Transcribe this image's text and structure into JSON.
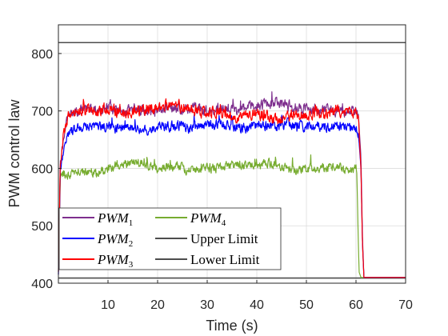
{
  "chart_data": {
    "type": "line",
    "title": "",
    "xlabel": "Time (s)",
    "ylabel": "PWM control law",
    "xlim": [
      0,
      70
    ],
    "ylim": [
      400,
      850
    ],
    "xticks": [
      10,
      20,
      30,
      40,
      50,
      60,
      70
    ],
    "yticks": [
      400,
      500,
      600,
      700,
      800
    ],
    "grid": true,
    "legend_position": "bottom-left",
    "series": [
      {
        "name": "PWM",
        "sub": "1",
        "color": "#7E2F8E",
        "x": [
          0,
          0.4,
          1,
          2,
          4,
          6,
          8,
          10,
          12,
          14,
          16,
          18,
          20,
          22,
          24,
          26,
          28,
          30,
          32,
          34,
          36,
          38,
          40,
          42,
          44,
          46,
          48,
          50,
          52,
          54,
          56,
          58,
          60,
          60.5,
          61,
          61.3,
          61.6,
          70
        ],
        "mean": [
          415,
          605,
          650,
          690,
          700,
          705,
          700,
          705,
          700,
          700,
          705,
          700,
          700,
          705,
          705,
          700,
          705,
          700,
          705,
          705,
          700,
          705,
          710,
          710,
          715,
          710,
          705,
          705,
          700,
          705,
          700,
          700,
          700,
          690,
          620,
          480,
          410,
          410
        ],
        "amp": 14,
        "seed": 11
      },
      {
        "name": "PWM",
        "sub": "2",
        "color": "#0000FF",
        "x": [
          0,
          0.4,
          1,
          2,
          4,
          6,
          8,
          10,
          12,
          14,
          16,
          18,
          20,
          22,
          24,
          26,
          28,
          30,
          32,
          34,
          36,
          38,
          40,
          42,
          44,
          46,
          48,
          50,
          52,
          54,
          56,
          58,
          60,
          60.5,
          61,
          61.3,
          61.6,
          70
        ],
        "mean": [
          415,
          600,
          630,
          665,
          670,
          675,
          675,
          672,
          668,
          668,
          670,
          668,
          672,
          675,
          675,
          670,
          672,
          675,
          678,
          675,
          672,
          670,
          675,
          675,
          670,
          678,
          675,
          672,
          675,
          672,
          675,
          672,
          670,
          660,
          600,
          470,
          410,
          410
        ],
        "amp": 13,
        "seed": 23
      },
      {
        "name": "PWM",
        "sub": "3",
        "color": "#FF0000",
        "x": [
          0,
          0.4,
          1,
          2,
          4,
          6,
          8,
          10,
          12,
          14,
          16,
          18,
          20,
          22,
          24,
          26,
          28,
          30,
          32,
          34,
          36,
          38,
          40,
          42,
          44,
          46,
          48,
          50,
          52,
          54,
          56,
          58,
          60,
          60.5,
          61,
          61.3,
          61.6,
          70
        ],
        "mean": [
          420,
          610,
          660,
          690,
          700,
          700,
          700,
          705,
          700,
          695,
          700,
          700,
          705,
          710,
          710,
          705,
          700,
          695,
          700,
          695,
          690,
          695,
          695,
          690,
          685,
          690,
          695,
          690,
          700,
          695,
          700,
          695,
          695,
          680,
          600,
          470,
          410,
          410
        ],
        "amp": 15,
        "seed": 37
      },
      {
        "name": "PWM",
        "sub": "4",
        "color": "#77AC30",
        "x": [
          0,
          0.4,
          1,
          2,
          4,
          6,
          8,
          10,
          12,
          14,
          16,
          18,
          20,
          22,
          24,
          26,
          28,
          30,
          32,
          34,
          36,
          38,
          40,
          42,
          44,
          46,
          48,
          50,
          52,
          54,
          56,
          58,
          60,
          60.2,
          60.4,
          60.6,
          61,
          70
        ],
        "mean": [
          420,
          585,
          590,
          590,
          595,
          595,
          590,
          600,
          605,
          610,
          610,
          605,
          600,
          600,
          605,
          595,
          600,
          600,
          600,
          605,
          605,
          605,
          605,
          610,
          605,
          600,
          595,
          600,
          600,
          600,
          605,
          595,
          600,
          580,
          500,
          420,
          410,
          410
        ],
        "amp": 12,
        "seed": 53
      },
      {
        "name": "Upper Limit",
        "sub": "",
        "color": "#4D4D4D",
        "x": [
          0,
          70
        ],
        "mean": [
          819,
          819
        ],
        "amp": 0,
        "seed": 0
      },
      {
        "name": "Lower Limit",
        "sub": "",
        "color": "#4D4D4D",
        "x": [
          0,
          70
        ],
        "mean": [
          409,
          409
        ],
        "amp": 0,
        "seed": 0
      }
    ]
  }
}
